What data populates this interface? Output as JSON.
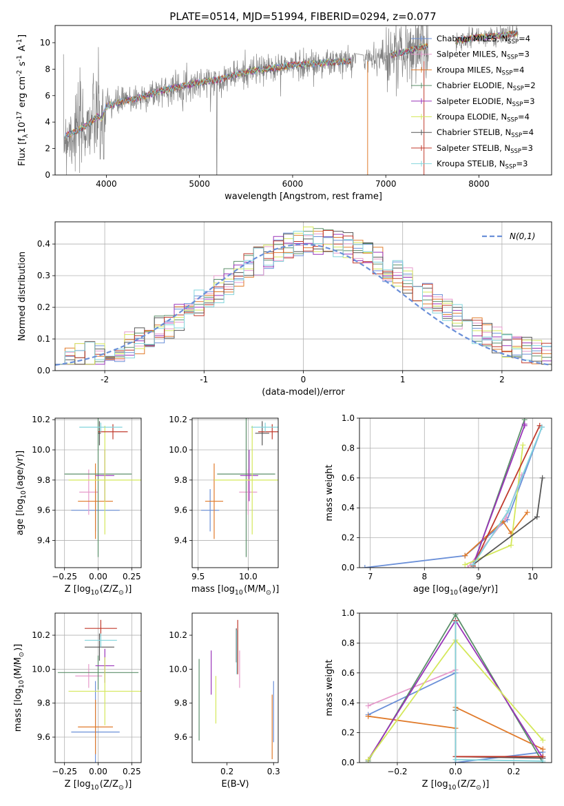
{
  "figure": {
    "title": "PLATE=0514, MJD=51994, FIBERID=0294, z=0.077"
  },
  "colors": {
    "chabrier_miles": "#6a8fd8",
    "salpeter_miles": "#e69acb",
    "kroupa_miles": "#e07a2a",
    "chabrier_elodie": "#5b8f6a",
    "salpeter_elodie": "#9932b8",
    "kroupa_elodie": "#d4e85a",
    "chabrier_stelib": "#555555",
    "salpeter_stelib": "#c0392b",
    "kroupa_stelib": "#82d4dc",
    "data": "#808080",
    "normal": "#6a8fd8",
    "grid": "#b0b0b0"
  },
  "chart_data": [
    {
      "id": "spectrum",
      "type": "line",
      "xlabel": "wavelength [Angstrom, rest frame]",
      "ylabel": "Flux [f$_\\lambda$10$^{-17}$ erg cm$^{-2}$ s$^{-1}$ A$^{-1}$]",
      "xlim": [
        3450,
        8780
      ],
      "ylim": [
        0,
        11.3
      ],
      "xticks": [
        4000,
        5000,
        6000,
        7000,
        8000
      ],
      "yticks": [
        0,
        2,
        4,
        6,
        8,
        10
      ],
      "grid": false,
      "legend_position": "right",
      "legend": [
        {
          "name": "Chabrier MILES",
          "nssp": "4"
        },
        {
          "name": "Salpeter MILES",
          "nssp": "3"
        },
        {
          "name": "Kroupa MILES",
          "nssp": "4"
        },
        {
          "name": "Chabrier ELODIE",
          "nssp": "2"
        },
        {
          "name": "Salpeter ELODIE",
          "nssp": "3"
        },
        {
          "name": "Kroupa ELODIE",
          "nssp": "4"
        },
        {
          "name": "Chabrier STELIB",
          "nssp": "4"
        },
        {
          "name": "Salpeter STELIB",
          "nssp": "3"
        },
        {
          "name": "Kroupa STELIB",
          "nssp": "3"
        }
      ],
      "continuum": [
        [
          3550,
          2.9
        ],
        [
          3700,
          3.4
        ],
        [
          3800,
          3.8
        ],
        [
          3900,
          4.4
        ],
        [
          3950,
          4.3
        ],
        [
          4000,
          5.2
        ],
        [
          4200,
          5.6
        ],
        [
          4400,
          5.9
        ],
        [
          4600,
          6.4
        ],
        [
          4800,
          6.7
        ],
        [
          5000,
          7.0
        ],
        [
          5200,
          7.2
        ],
        [
          5400,
          7.6
        ],
        [
          5600,
          7.9
        ],
        [
          5800,
          8.1
        ],
        [
          6000,
          8.3
        ],
        [
          6200,
          8.4
        ],
        [
          6400,
          8.5
        ],
        [
          6600,
          8.6
        ],
        [
          6800,
          8.8
        ],
        [
          7000,
          9.0
        ],
        [
          7200,
          9.3
        ],
        [
          7400,
          9.7
        ],
        [
          7600,
          9.9
        ],
        [
          7800,
          10.2
        ],
        [
          8000,
          10.4
        ],
        [
          8200,
          10.5
        ],
        [
          8400,
          10.7
        ]
      ],
      "flagged_dips": [
        {
          "x": 6805,
          "y": 0
        },
        {
          "x": 7410,
          "y": 0
        }
      ]
    },
    {
      "id": "residuals",
      "type": "line",
      "xlabel": "(data-model)/error",
      "ylabel": "Normed distribution",
      "xlim": [
        -2.5,
        2.5
      ],
      "ylim": [
        0,
        0.47
      ],
      "xticks": [
        -2,
        -1,
        0,
        1,
        2
      ],
      "yticks": [
        0.0,
        0.1,
        0.2,
        0.3,
        0.4
      ],
      "grid": true,
      "legend": [
        {
          "name": "$\\mathcal{N}(0,1)$"
        }
      ],
      "normal_curve": {
        "mean": 0,
        "std": 1,
        "style": "dashed"
      },
      "bin_width": 0.1
    },
    {
      "id": "age_vs_Z",
      "type": "scatter",
      "xlabel": "Z [log$_{10}$(Z/Z$_\\odot$)]",
      "ylabel": "age  [log$_{10}$(age/yr)]",
      "xlim": [
        -0.32,
        0.32
      ],
      "ylim": [
        9.22,
        10.21
      ],
      "xticks": [
        -0.25,
        0.0,
        0.25
      ],
      "xticklabels": [
        "−0.25",
        "0.00",
        "0.25"
      ],
      "yticks": [
        9.4,
        9.6,
        9.8,
        10.0,
        10.2
      ],
      "grid": true,
      "points": [
        {
          "model": "chabrier_miles",
          "x": -0.02,
          "xerr": 0.18,
          "y": 9.6,
          "yerr": 0.14
        },
        {
          "model": "salpeter_miles",
          "x": -0.07,
          "xerr": 0.07,
          "y": 9.72,
          "yerr": 0.15
        },
        {
          "model": "kroupa_miles",
          "x": -0.02,
          "xerr": 0.13,
          "y": 9.66,
          "yerr": 0.25
        },
        {
          "model": "chabrier_elodie",
          "x": 0.0,
          "xerr": 0.25,
          "y": 9.84,
          "yerr": 0.55
        },
        {
          "model": "salpeter_elodie",
          "x": 0.05,
          "xerr": 0.07,
          "y": 9.83,
          "yerr": 0.17
        },
        {
          "model": "kroupa_elodie",
          "x": 0.05,
          "xerr": 0.27,
          "y": 9.8,
          "yerr": 0.36
        },
        {
          "model": "chabrier_stelib",
          "x": 0.01,
          "xerr": 0.01,
          "y": 10.11,
          "yerr": 0.08
        },
        {
          "model": "salpeter_stelib",
          "x": 0.11,
          "xerr": 0.11,
          "y": 10.12,
          "yerr": 0.05
        },
        {
          "model": "kroupa_stelib",
          "x": 0.02,
          "xerr": 0.16,
          "y": 10.15,
          "yerr": 0.03
        }
      ]
    },
    {
      "id": "age_vs_mass",
      "type": "scatter",
      "xlabel": "mass [log$_{10}$(M/M$_\\odot$)]",
      "ylabel": "",
      "xlim": [
        9.44,
        10.3
      ],
      "ylim": [
        9.22,
        10.21
      ],
      "xticks": [
        9.5,
        10.0
      ],
      "xticklabels": [
        "9.5",
        "10.0"
      ],
      "yticks": [
        9.4,
        9.6,
        9.8,
        10.0,
        10.2
      ],
      "grid": true,
      "points": [
        {
          "model": "chabrier_miles",
          "x": 9.62,
          "xerr": 0.09,
          "y": 9.6,
          "yerr": 0.14
        },
        {
          "model": "salpeter_miles",
          "x": 10.0,
          "xerr": 0.09,
          "y": 9.72,
          "yerr": 0.15
        },
        {
          "model": "kroupa_miles",
          "x": 9.66,
          "xerr": 0.09,
          "y": 9.66,
          "yerr": 0.25
        },
        {
          "model": "chabrier_elodie",
          "x": 9.98,
          "xerr": 0.29,
          "y": 9.84,
          "yerr": 0.55
        },
        {
          "model": "salpeter_elodie",
          "x": 10.01,
          "xerr": 0.09,
          "y": 9.83,
          "yerr": 0.17
        },
        {
          "model": "kroupa_elodie",
          "x": 10.04,
          "xerr": 0.38,
          "y": 9.8,
          "yerr": 0.36
        },
        {
          "model": "chabrier_stelib",
          "x": 10.14,
          "xerr": 0.07,
          "y": 10.11,
          "yerr": 0.08
        },
        {
          "model": "salpeter_stelib",
          "x": 10.24,
          "xerr": 0.14,
          "y": 10.12,
          "yerr": 0.05
        },
        {
          "model": "kroupa_stelib",
          "x": 10.17,
          "xerr": 0.14,
          "y": 10.15,
          "yerr": 0.03
        }
      ]
    },
    {
      "id": "weights_vs_age",
      "type": "line",
      "xlabel": "age  [log$_{10}$(age/yr)]",
      "ylabel": "mass weight",
      "xlim": [
        6.8,
        10.35
      ],
      "ylim": [
        0,
        1.0
      ],
      "xticks": [
        7,
        8,
        9,
        10
      ],
      "yticks": [
        0.0,
        0.2,
        0.4,
        0.6,
        0.8,
        1.0
      ],
      "grid": true,
      "series": [
        {
          "model": "chabrier_miles",
          "x": [
            6.9,
            8.75,
            9.53,
            10.17
          ],
          "y": [
            0.0,
            0.08,
            0.32,
            0.94
          ]
        },
        {
          "model": "salpeter_miles",
          "x": [
            8.8,
            9.5,
            9.8
          ],
          "y": [
            0.0,
            0.33,
            0.62
          ]
        },
        {
          "model": "kroupa_miles",
          "x": [
            8.75,
            9.45,
            9.6,
            9.9
          ],
          "y": [
            0.08,
            0.31,
            0.23,
            0.37
          ]
        },
        {
          "model": "chabrier_elodie",
          "x": [
            8.9,
            9.85
          ],
          "y": [
            0.01,
            0.99
          ]
        },
        {
          "model": "salpeter_elodie",
          "x": [
            8.9,
            9.85,
            9.85
          ],
          "y": [
            0.02,
            0.95,
            0.96
          ]
        },
        {
          "model": "kroupa_elodie",
          "x": [
            8.75,
            9.6,
            9.82
          ],
          "y": [
            0.02,
            0.15,
            0.82
          ]
        },
        {
          "model": "chabrier_stelib",
          "x": [
            8.9,
            10.08,
            10.18
          ],
          "y": [
            0.02,
            0.34,
            0.6
          ]
        },
        {
          "model": "salpeter_stelib",
          "x": [
            8.9,
            10.13
          ],
          "y": [
            0.01,
            0.95
          ]
        },
        {
          "model": "kroupa_stelib",
          "x": [
            8.9,
            9.55,
            10.17
          ],
          "y": [
            0.02,
            0.38,
            0.94
          ]
        }
      ]
    },
    {
      "id": "mass_vs_Z",
      "type": "scatter",
      "xlabel": "Z [log$_{10}$(Z/Z$_\\odot$)]",
      "ylabel": "mass [log$_{10}$(M/M$_\\odot$)]",
      "xlim": [
        -0.32,
        0.32
      ],
      "ylim": [
        9.45,
        10.33
      ],
      "xticks": [
        -0.25,
        0.0,
        0.25
      ],
      "xticklabels": [
        "−0.25",
        "0.00",
        "0.25"
      ],
      "yticks": [
        9.6,
        9.8,
        10.0,
        10.2
      ],
      "grid": true,
      "points": [
        {
          "model": "chabrier_miles",
          "x": -0.02,
          "xerr": 0.18,
          "y": 9.63,
          "yerr": 0.3
        },
        {
          "model": "salpeter_miles",
          "x": -0.07,
          "xerr": 0.1,
          "y": 9.96,
          "yerr": 0.07
        },
        {
          "model": "kroupa_miles",
          "x": -0.02,
          "xerr": 0.13,
          "y": 9.66,
          "yerr": 0.16
        },
        {
          "model": "chabrier_elodie",
          "x": 0.0,
          "xerr": 0.3,
          "y": 9.98,
          "yerr": 0.1
        },
        {
          "model": "salpeter_elodie",
          "x": 0.05,
          "xerr": 0.07,
          "y": 10.02,
          "yerr": 0.1
        },
        {
          "model": "kroupa_elodie",
          "x": 0.05,
          "xerr": 0.27,
          "y": 9.87,
          "yerr": 0.2
        },
        {
          "model": "chabrier_stelib",
          "x": 0.01,
          "xerr": 0.11,
          "y": 10.13,
          "yerr": 0.08
        },
        {
          "model": "salpeter_stelib",
          "x": 0.02,
          "xerr": 0.12,
          "y": 10.24,
          "yerr": 0.05
        },
        {
          "model": "kroupa_stelib",
          "x": 0.02,
          "xerr": 0.12,
          "y": 10.17,
          "yerr": 0.04
        }
      ]
    },
    {
      "id": "mass_vs_ebv",
      "type": "scatter",
      "xlabel": "E(B-V)",
      "ylabel": "",
      "xlim": [
        0.125,
        0.31
      ],
      "ylim": [
        9.45,
        10.33
      ],
      "xticks": [
        0.2,
        0.3
      ],
      "xticklabels": [
        "0.2",
        "0.3"
      ],
      "yticks": [
        9.6,
        9.8,
        10.0,
        10.2
      ],
      "grid": false,
      "points": [
        {
          "model": "chabrier_miles",
          "x": 0.3,
          "y": 9.75,
          "yerr": 0.18
        },
        {
          "model": "salpeter_miles",
          "x": 0.227,
          "y": 10.0,
          "yerr": 0.11
        },
        {
          "model": "kroupa_miles",
          "x": 0.297,
          "y": 9.66,
          "yerr": 0.19
        },
        {
          "model": "chabrier_elodie",
          "x": 0.14,
          "y": 9.82,
          "yerr": 0.24
        },
        {
          "model": "salpeter_elodie",
          "x": 0.166,
          "y": 9.98,
          "yerr": 0.13
        },
        {
          "model": "kroupa_elodie",
          "x": 0.176,
          "y": 9.82,
          "yerr": 0.14
        },
        {
          "model": "chabrier_stelib",
          "x": 0.22,
          "y": 10.14,
          "yerr": 0.1
        },
        {
          "model": "salpeter_stelib",
          "x": 0.223,
          "y": 10.13,
          "yerr": 0.16
        },
        {
          "model": "kroupa_stelib",
          "x": 0.221,
          "y": 10.1,
          "yerr": 0.13
        }
      ]
    },
    {
      "id": "weights_vs_Z",
      "type": "line",
      "xlabel": "Z [log$_{10}$(Z/Z$_\\odot$)]",
      "ylabel": "mass weight",
      "xlim": [
        -0.33,
        0.33
      ],
      "ylim": [
        0,
        1.0
      ],
      "xticks": [
        -0.2,
        0.0,
        0.2
      ],
      "xticklabels": [
        "−0.2",
        "0.0",
        "0.2"
      ],
      "yticks": [
        0.0,
        0.2,
        0.4,
        0.6,
        0.8,
        1.0
      ],
      "grid": true,
      "series": [
        {
          "model": "chabrier_miles",
          "x": [
            -0.3,
            0.0,
            0.0,
            0.3,
            0.0
          ],
          "y": [
            0.32,
            0.6,
            0.0,
            0.07,
            0.0
          ]
        },
        {
          "model": "salpeter_miles",
          "x": [
            -0.3,
            0.0
          ],
          "y": [
            0.38,
            0.62
          ]
        },
        {
          "model": "kroupa_miles",
          "x": [
            -0.3,
            0.0,
            0.0,
            0.3
          ],
          "y": [
            0.31,
            0.23,
            0.37,
            0.09
          ]
        },
        {
          "model": "chabrier_elodie",
          "x": [
            -0.3,
            0.0,
            0.3
          ],
          "y": [
            0.01,
            0.99,
            0.0
          ]
        },
        {
          "model": "salpeter_elodie",
          "x": [
            -0.3,
            0.0,
            0.3
          ],
          "y": [
            0.02,
            0.95,
            0.03
          ]
        },
        {
          "model": "kroupa_elodie",
          "x": [
            -0.3,
            0.0,
            0.3
          ],
          "y": [
            0.02,
            0.82,
            0.15
          ]
        },
        {
          "model": "chabrier_stelib",
          "x": [
            0.0,
            0.0,
            0.3
          ],
          "y": [
            0.35,
            0.04,
            0.03
          ]
        },
        {
          "model": "salpeter_stelib",
          "x": [
            0.0,
            0.0,
            0.3
          ],
          "y": [
            0.95,
            0.04,
            0.04
          ]
        },
        {
          "model": "kroupa_stelib",
          "x": [
            0.0,
            0.0,
            0.3
          ],
          "y": [
            0.94,
            0.02,
            0.01
          ]
        }
      ]
    }
  ]
}
